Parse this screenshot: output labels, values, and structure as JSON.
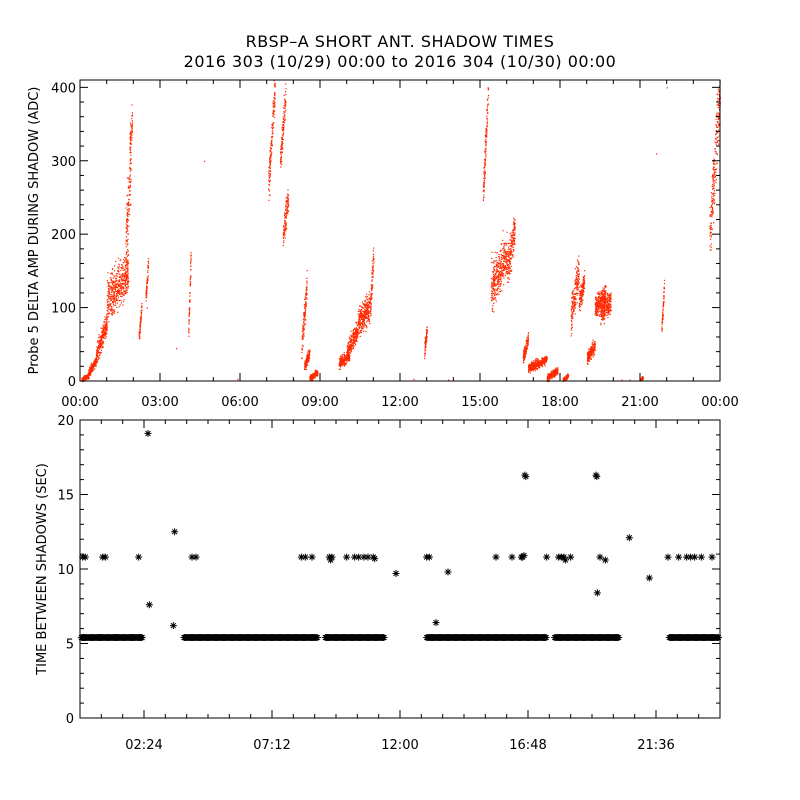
{
  "title_line1": "RBSP–A SHORT ANT. SHADOW TIMES",
  "title_line2": "2016 303 (10/29) 00:00 to 2016 304 (10/30) 00:00",
  "colors": {
    "top_points": "#ff2a00",
    "bottom_points": "#000000",
    "axes": "#000000"
  },
  "chart_data": [
    {
      "type": "scatter",
      "ylabel": "Probe 5 DELTA AMP DURING SHADOW (ADC)",
      "xlabel": "",
      "xlim": [
        0,
        24
      ],
      "ylim": [
        0,
        410
      ],
      "x_ticks": [
        "00:00",
        "03:00",
        "06:00",
        "09:00",
        "12:00",
        "15:00",
        "18:00",
        "21:00",
        "00:00"
      ],
      "y_ticks": [
        "0",
        "100",
        "200",
        "300",
        "400"
      ],
      "point_color": "#ff2a00",
      "segments": [
        {
          "x": [
            0.05,
            0.3
          ],
          "y": [
            2,
            8
          ],
          "spread": 3
        },
        {
          "x": [
            0.3,
            0.6
          ],
          "y": [
            10,
            30
          ],
          "spread": 6
        },
        {
          "x": [
            0.6,
            1.0
          ],
          "y": [
            35,
            80
          ],
          "spread": 15
        },
        {
          "x": [
            1.0,
            1.8
          ],
          "y": [
            110,
            150
          ],
          "spread": 30
        },
        {
          "x": [
            1.7,
            1.9
          ],
          "y": [
            190,
            290
          ],
          "spread": 40
        },
        {
          "x": [
            1.85,
            1.95
          ],
          "y": [
            320,
            360
          ],
          "spread": 20
        },
        {
          "x": [
            2.2,
            2.3
          ],
          "y": [
            60,
            100
          ],
          "spread": 10
        },
        {
          "x": [
            2.45,
            2.55
          ],
          "y": [
            115,
            160
          ],
          "spread": 10
        },
        {
          "x": [
            4.05,
            4.15
          ],
          "y": [
            60,
            180
          ],
          "spread": 15
        },
        {
          "x": [
            7.05,
            7.3
          ],
          "y": [
            260,
            400
          ],
          "spread": 25
        },
        {
          "x": [
            7.5,
            7.7
          ],
          "y": [
            300,
            390
          ],
          "spread": 20
        },
        {
          "x": [
            7.6,
            7.8
          ],
          "y": [
            200,
            250
          ],
          "spread": 20
        },
        {
          "x": [
            8.3,
            8.5
          ],
          "y": [
            50,
            130
          ],
          "spread": 20
        },
        {
          "x": [
            8.4,
            8.6
          ],
          "y": [
            20,
            40
          ],
          "spread": 8
        },
        {
          "x": [
            8.6,
            8.9
          ],
          "y": [
            4,
            12
          ],
          "spread": 4
        },
        {
          "x": [
            9.7,
            10.1
          ],
          "y": [
            25,
            35
          ],
          "spread": 8
        },
        {
          "x": [
            10.0,
            10.4
          ],
          "y": [
            40,
            70
          ],
          "spread": 12
        },
        {
          "x": [
            10.4,
            10.9
          ],
          "y": [
            80,
            105
          ],
          "spread": 20
        },
        {
          "x": [
            10.9,
            11.0
          ],
          "y": [
            120,
            170
          ],
          "spread": 20
        },
        {
          "x": [
            12.9,
            13.0
          ],
          "y": [
            40,
            70
          ],
          "spread": 10
        },
        {
          "x": [
            15.1,
            15.3
          ],
          "y": [
            250,
            400
          ],
          "spread": 25
        },
        {
          "x": [
            15.4,
            16.0
          ],
          "y": [
            130,
            170
          ],
          "spread": 30
        },
        {
          "x": [
            16.0,
            16.3
          ],
          "y": [
            150,
            210
          ],
          "spread": 25
        },
        {
          "x": [
            16.6,
            16.8
          ],
          "y": [
            30,
            60
          ],
          "spread": 10
        },
        {
          "x": [
            16.8,
            17.5
          ],
          "y": [
            18,
            30
          ],
          "spread": 6
        },
        {
          "x": [
            17.5,
            17.9
          ],
          "y": [
            5,
            15
          ],
          "spread": 5
        },
        {
          "x": [
            18.1,
            18.3
          ],
          "y": [
            2,
            8
          ],
          "spread": 3
        },
        {
          "x": [
            18.4,
            18.7
          ],
          "y": [
            90,
            150
          ],
          "spread": 25
        },
        {
          "x": [
            18.7,
            18.9
          ],
          "y": [
            110,
            135
          ],
          "spread": 15
        },
        {
          "x": [
            19.0,
            19.3
          ],
          "y": [
            30,
            50
          ],
          "spread": 10
        },
        {
          "x": [
            19.3,
            19.7
          ],
          "y": [
            100,
            120
          ],
          "spread": 15
        },
        {
          "x": [
            19.5,
            19.9
          ],
          "y": [
            95,
            110
          ],
          "spread": 15
        },
        {
          "x": [
            21.0,
            21.1
          ],
          "y": [
            2,
            5
          ],
          "spread": 2
        },
        {
          "x": [
            21.8,
            21.9
          ],
          "y": [
            70,
            130
          ],
          "spread": 10
        },
        {
          "x": [
            23.6,
            23.99
          ],
          "y": [
            200,
            400
          ],
          "spread": 50
        }
      ],
      "isolated_points": [
        {
          "x": 2.5,
          "y": 100
        },
        {
          "x": 3.6,
          "y": 45
        },
        {
          "x": 4.65,
          "y": 300
        },
        {
          "x": 5.9,
          "y": 3
        },
        {
          "x": 8.0,
          "y": 2
        },
        {
          "x": 12.5,
          "y": 3
        },
        {
          "x": 13.8,
          "y": 2
        },
        {
          "x": 20.3,
          "y": 2
        },
        {
          "x": 21.6,
          "y": 310
        },
        {
          "x": 22.0,
          "y": 400
        },
        {
          "x": 20.6,
          "y": 2
        }
      ]
    },
    {
      "type": "scatter",
      "ylabel": "TIME BETWEEN SHADOWS (SEC)",
      "xlabel": "",
      "xlim": [
        0,
        24
      ],
      "ylim": [
        0,
        20
      ],
      "x_ticks": [
        "02:24",
        "07:12",
        "12:00",
        "16:48",
        "21:36"
      ],
      "y_ticks": [
        "0",
        "5",
        "10",
        "15",
        "20"
      ],
      "point_color": "#000000",
      "baseline_runs": [
        {
          "x": [
            0.05,
            2.35
          ],
          "y": 5.4
        },
        {
          "x": [
            3.9,
            8.9
          ],
          "y": 5.4
        },
        {
          "x": [
            9.2,
            11.4
          ],
          "y": 5.4
        },
        {
          "x": [
            13.0,
            17.5
          ],
          "y": 5.4
        },
        {
          "x": [
            17.8,
            20.2
          ],
          "y": 5.4
        },
        {
          "x": [
            22.1,
            23.95
          ],
          "y": 5.4
        }
      ],
      "points": [
        {
          "x": 0.1,
          "y": 10.8
        },
        {
          "x": 0.2,
          "y": 10.8
        },
        {
          "x": 0.85,
          "y": 10.8
        },
        {
          "x": 0.95,
          "y": 10.8
        },
        {
          "x": 2.2,
          "y": 10.8
        },
        {
          "x": 2.55,
          "y": 19.1
        },
        {
          "x": 2.6,
          "y": 7.6
        },
        {
          "x": 3.5,
          "y": 6.2
        },
        {
          "x": 3.55,
          "y": 12.5
        },
        {
          "x": 4.2,
          "y": 10.8
        },
        {
          "x": 4.35,
          "y": 10.8
        },
        {
          "x": 8.3,
          "y": 10.8
        },
        {
          "x": 8.45,
          "y": 10.8
        },
        {
          "x": 8.7,
          "y": 10.8
        },
        {
          "x": 9.35,
          "y": 10.8
        },
        {
          "x": 9.45,
          "y": 10.8
        },
        {
          "x": 9.4,
          "y": 10.6
        },
        {
          "x": 10.0,
          "y": 10.8
        },
        {
          "x": 10.3,
          "y": 10.8
        },
        {
          "x": 10.45,
          "y": 10.8
        },
        {
          "x": 10.65,
          "y": 10.8
        },
        {
          "x": 10.8,
          "y": 10.8
        },
        {
          "x": 11.0,
          "y": 10.8
        },
        {
          "x": 11.05,
          "y": 10.7
        },
        {
          "x": 11.85,
          "y": 9.7
        },
        {
          "x": 13.0,
          "y": 10.8
        },
        {
          "x": 13.1,
          "y": 10.8
        },
        {
          "x": 13.35,
          "y": 6.4
        },
        {
          "x": 13.8,
          "y": 9.8
        },
        {
          "x": 15.6,
          "y": 10.8
        },
        {
          "x": 16.2,
          "y": 10.8
        },
        {
          "x": 16.55,
          "y": 10.8
        },
        {
          "x": 16.6,
          "y": 10.8
        },
        {
          "x": 16.65,
          "y": 10.9
        },
        {
          "x": 16.68,
          "y": 16.3
        },
        {
          "x": 16.72,
          "y": 16.2
        },
        {
          "x": 17.5,
          "y": 10.8
        },
        {
          "x": 17.95,
          "y": 10.8
        },
        {
          "x": 18.05,
          "y": 10.8
        },
        {
          "x": 18.15,
          "y": 10.8
        },
        {
          "x": 18.2,
          "y": 10.6
        },
        {
          "x": 18.4,
          "y": 10.8
        },
        {
          "x": 19.35,
          "y": 16.3
        },
        {
          "x": 19.38,
          "y": 16.2
        },
        {
          "x": 19.4,
          "y": 8.4
        },
        {
          "x": 19.5,
          "y": 10.8
        },
        {
          "x": 19.7,
          "y": 10.6
        },
        {
          "x": 20.6,
          "y": 12.1
        },
        {
          "x": 21.35,
          "y": 9.4
        },
        {
          "x": 22.05,
          "y": 10.8
        },
        {
          "x": 22.45,
          "y": 10.8
        },
        {
          "x": 22.75,
          "y": 10.8
        },
        {
          "x": 22.9,
          "y": 10.8
        },
        {
          "x": 23.05,
          "y": 10.8
        },
        {
          "x": 23.3,
          "y": 10.8
        },
        {
          "x": 23.7,
          "y": 10.8
        }
      ]
    }
  ]
}
